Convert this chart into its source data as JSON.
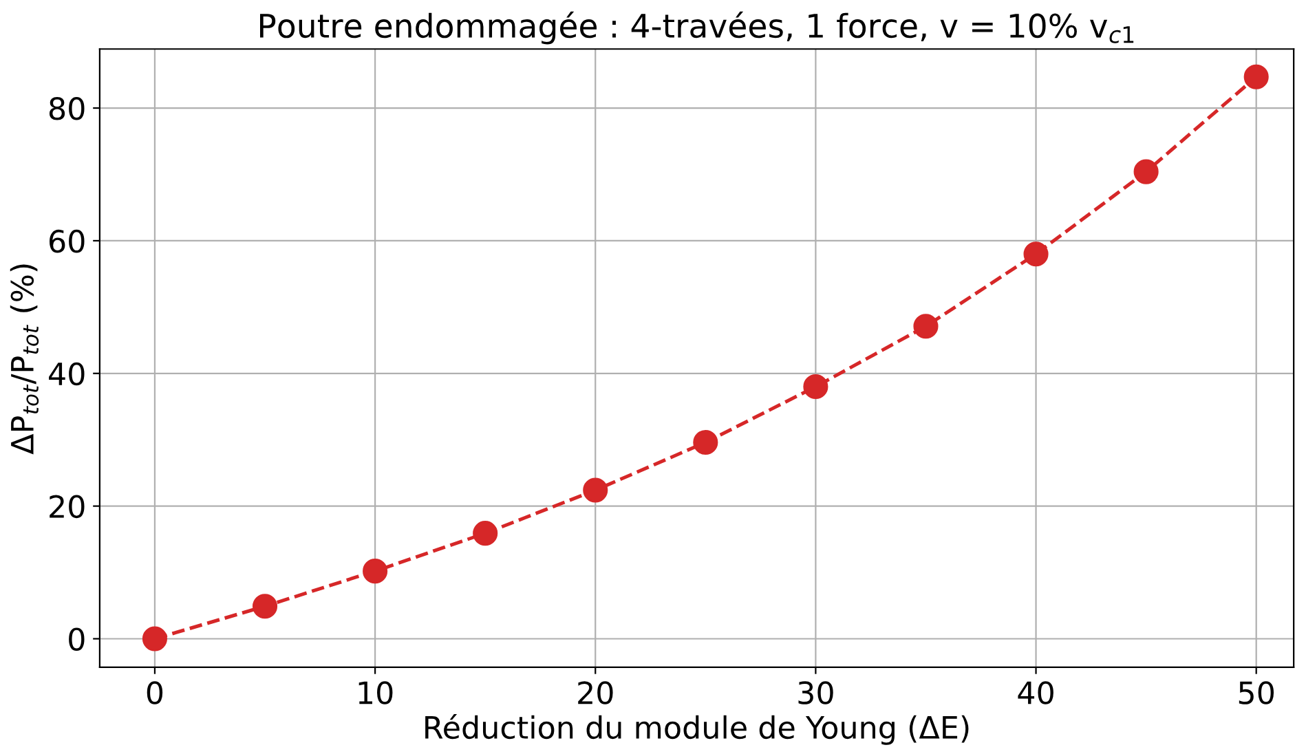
{
  "chart_data": {
    "type": "line",
    "title": "Poutre endommagée : 4-travées, 1 force, v = 10% v$_{c1}$",
    "xlabel": "Réduction du module de Young (ΔE)",
    "ylabel": "ΔP$_{tot}$/P$_{tot}$ (%)",
    "x": [
      0,
      5,
      10,
      15,
      20,
      25,
      30,
      35,
      40,
      45,
      50
    ],
    "series": [
      {
        "color": "#d62728",
        "values": [
          0,
          4.9,
          10.2,
          15.9,
          22.4,
          29.6,
          38.0,
          47.1,
          58.0,
          70.4,
          84.7
        ]
      }
    ],
    "xlim": [
      -2.5,
      51.7
    ],
    "ylim": [
      -4.3,
      88.9
    ],
    "xticks": [
      0,
      10,
      20,
      30,
      40,
      50
    ],
    "yticks": [
      0,
      20,
      40,
      60,
      80
    ],
    "grid": true,
    "marker": "circle",
    "line_style": "dashed"
  }
}
